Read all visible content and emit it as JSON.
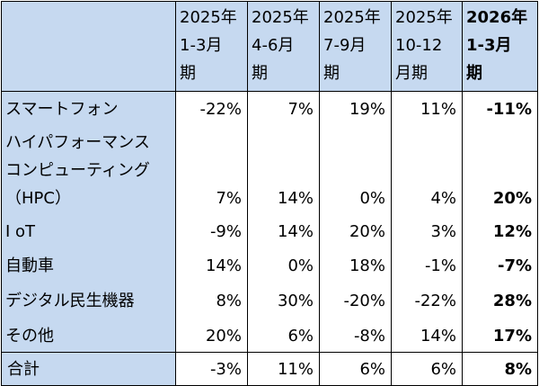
{
  "table": {
    "header": [
      [
        "2025年",
        "1-3月",
        "期"
      ],
      [
        "2025年",
        "4-6月",
        "期"
      ],
      [
        "2025年",
        "7-9月",
        "期"
      ],
      [
        "2025年",
        "10-12",
        "月期"
      ],
      [
        "2026年",
        "1-3月",
        "期"
      ]
    ],
    "rows": [
      {
        "label": [
          "スマートフォン"
        ],
        "values": [
          "-22%",
          "7%",
          "19%",
          "11%",
          "-11%"
        ]
      },
      {
        "label": [
          "ハイパフォーマンス",
          "コンピューティング",
          "（HPC）"
        ],
        "values": [
          "7%",
          "14%",
          "0%",
          "4%",
          "20%"
        ]
      },
      {
        "label": [
          "I oT"
        ],
        "values": [
          "-9%",
          "14%",
          "20%",
          "3%",
          "12%"
        ]
      },
      {
        "label": [
          "自動車"
        ],
        "values": [
          "14%",
          "0%",
          "18%",
          "-1%",
          "-7%"
        ]
      },
      {
        "label": [
          "デジタル民生機器"
        ],
        "values": [
          "8%",
          "30%",
          "-20%",
          "-22%",
          "28%"
        ]
      },
      {
        "label": [
          "その他"
        ],
        "values": [
          "20%",
          "6%",
          "-8%",
          "14%",
          "17%"
        ]
      }
    ],
    "total": {
      "label": [
        "合計"
      ],
      "values": [
        "-3%",
        "11%",
        "6%",
        "6%",
        "8%"
      ]
    }
  }
}
